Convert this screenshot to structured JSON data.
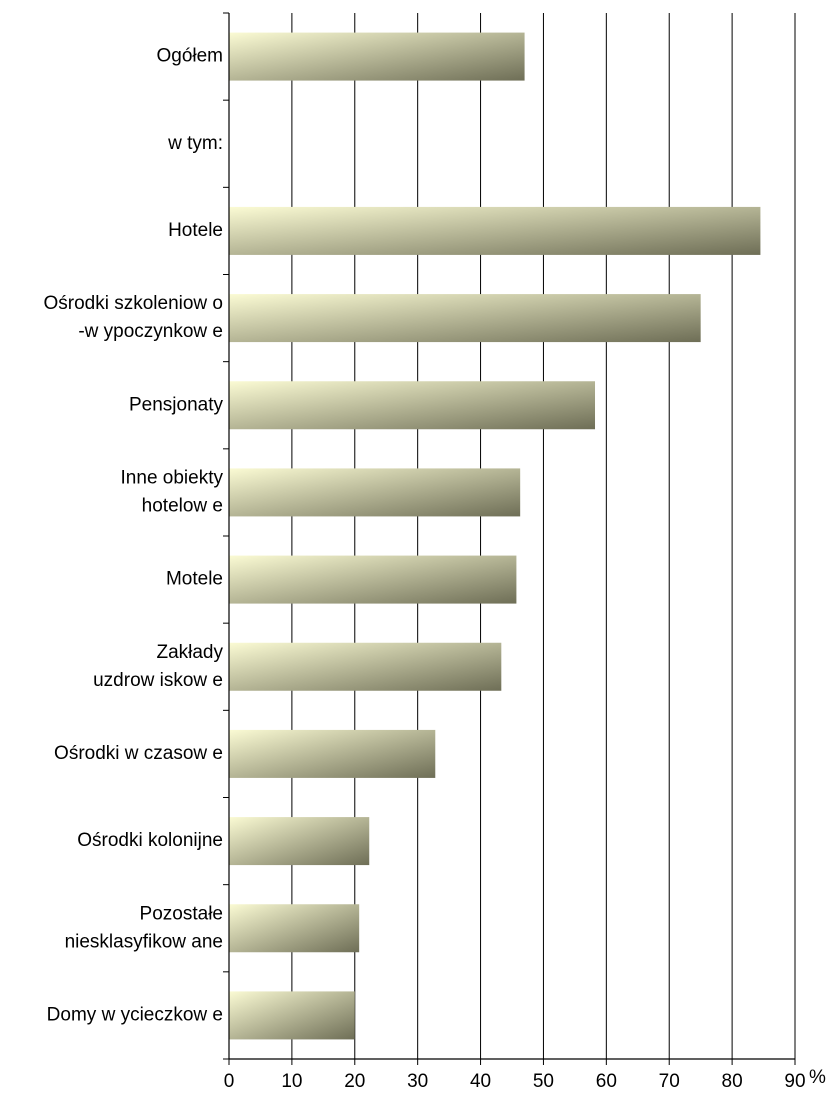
{
  "chart_data": {
    "type": "bar",
    "orientation": "horizontal",
    "title": "",
    "xlabel": "",
    "ylabel": "",
    "unit_label": "%",
    "xlim": [
      0,
      90
    ],
    "xticks": [
      "0",
      "10",
      "20",
      "30",
      "40",
      "50",
      "60",
      "70",
      "80",
      "90"
    ],
    "grid": "vertical",
    "bar_gradient": [
      "#fbfbd4",
      "#6e6e56"
    ],
    "rows": [
      {
        "label": [
          "Ogółem"
        ],
        "value": 47
      },
      {
        "label": [
          "w tym:"
        ],
        "value": null
      },
      {
        "label": [
          "Hotele"
        ],
        "value": 84.5
      },
      {
        "label": [
          "Ośrodki szkoleniow o",
          "-w ypoczynkow e"
        ],
        "value": 75
      },
      {
        "label": [
          "Pensjonaty"
        ],
        "value": 58.2
      },
      {
        "label": [
          "Inne obiekty",
          "hotelow e"
        ],
        "value": 46.3
      },
      {
        "label": [
          "Motele"
        ],
        "value": 45.7
      },
      {
        "label": [
          "Zakłady",
          "uzdrow iskow e"
        ],
        "value": 43.3
      },
      {
        "label": [
          "Ośrodki w czasow e"
        ],
        "value": 32.8
      },
      {
        "label": [
          "Ośrodki kolonijne"
        ],
        "value": 22.3
      },
      {
        "label": [
          "Pozostałe",
          "niesklasyfikow ane"
        ],
        "value": 20.7
      },
      {
        "label": [
          "Domy w ycieczkow e"
        ],
        "value": 20
      }
    ]
  }
}
